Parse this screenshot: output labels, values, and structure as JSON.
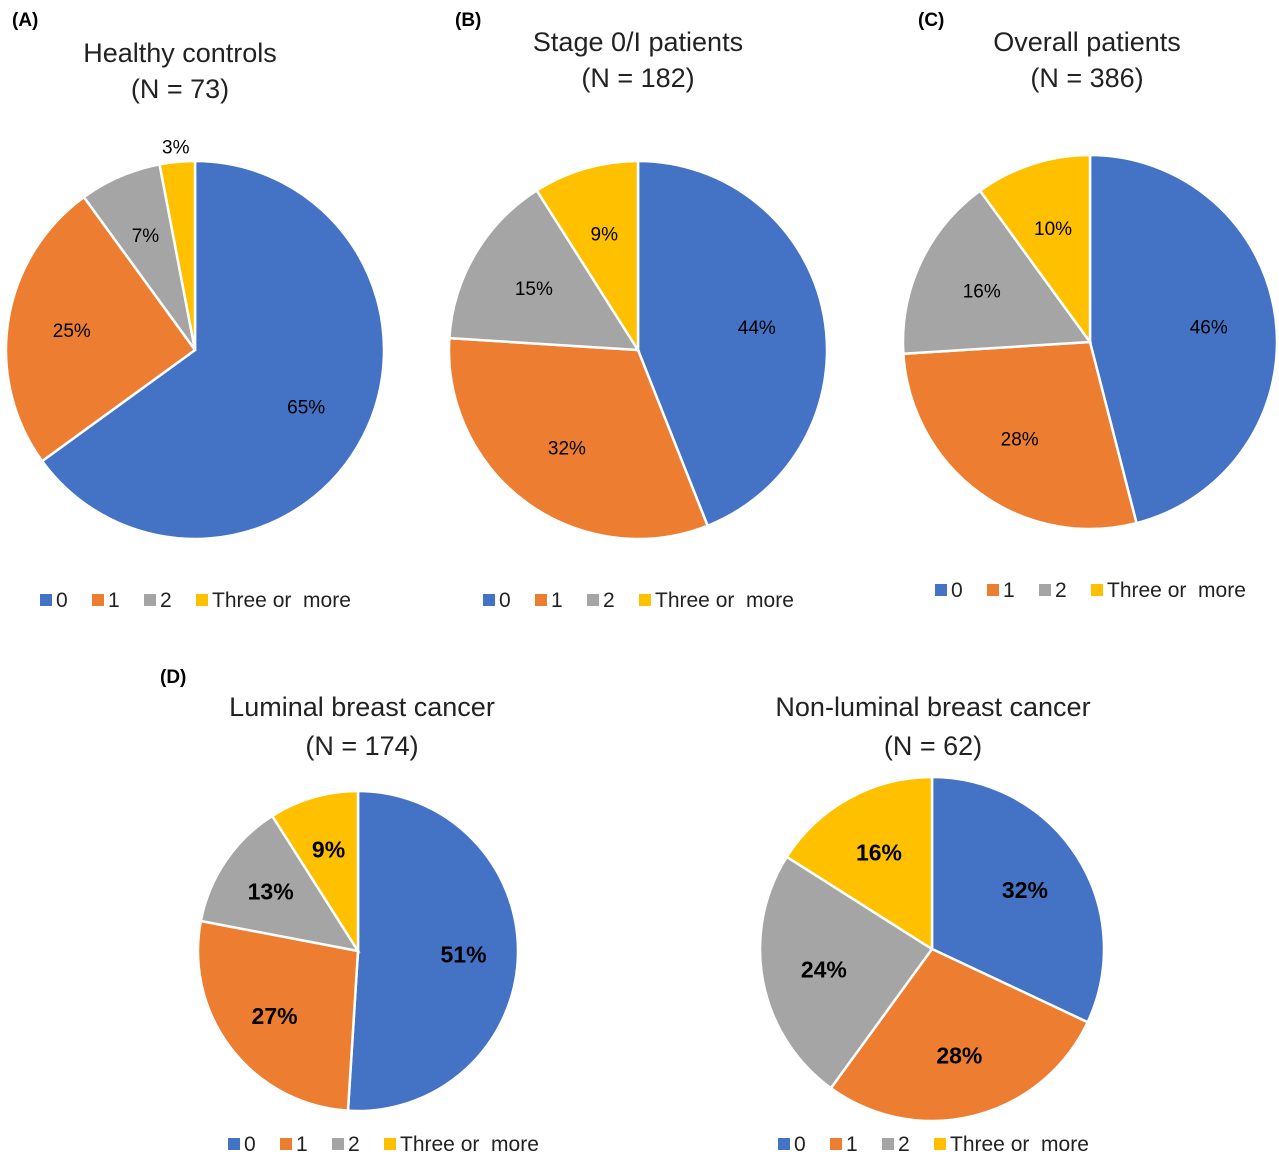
{
  "colors": {
    "0": "#4472C4",
    "1": "#ED7D31",
    "2": "#A5A5A5",
    "three_or_more": "#FFC000"
  },
  "legend_labels": [
    "0",
    "1",
    "2",
    "Three or  more"
  ],
  "chart_data": [
    {
      "type": "pie",
      "panel": "(A)",
      "title": "Healthy controls",
      "subtitle": "(N = 73)",
      "categories": [
        "0",
        "1",
        "2",
        "Three or  more"
      ],
      "values": [
        65,
        25,
        7,
        3
      ],
      "labels": [
        "65%",
        "25%",
        "7%",
        "3%"
      ],
      "legend_position": "bottom"
    },
    {
      "type": "pie",
      "panel": "(B)",
      "title": "Stage 0/I patients",
      "subtitle": "(N = 182)",
      "categories": [
        "0",
        "1",
        "2",
        "Three or  more"
      ],
      "values": [
        44,
        32,
        15,
        9
      ],
      "labels": [
        "44%",
        "32%",
        "15%",
        "9%"
      ],
      "legend_position": "bottom"
    },
    {
      "type": "pie",
      "panel": "(C)",
      "title": "Overall patients",
      "subtitle": "(N = 386)",
      "categories": [
        "0",
        "1",
        "2",
        "Three or  more"
      ],
      "values": [
        46,
        28,
        16,
        10
      ],
      "labels": [
        "46%",
        "28%",
        "16%",
        "10%"
      ],
      "legend_position": "bottom"
    },
    {
      "type": "pie",
      "panel": "(D)",
      "title": "Luminal breast cancer",
      "subtitle": "(N = 174)",
      "categories": [
        "0",
        "1",
        "2",
        "Three or  more"
      ],
      "values": [
        51,
        27,
        13,
        9
      ],
      "labels": [
        "51%",
        "27%",
        "13%",
        "9%"
      ],
      "legend_position": "bottom"
    },
    {
      "type": "pie",
      "panel": "",
      "title": "Non-luminal breast cancer",
      "subtitle": "(N = 62)",
      "categories": [
        "0",
        "1",
        "2",
        "Three or  more"
      ],
      "values": [
        32,
        28,
        24,
        16
      ],
      "labels": [
        "32%",
        "28%",
        "24%",
        "16%"
      ],
      "legend_position": "bottom"
    }
  ]
}
